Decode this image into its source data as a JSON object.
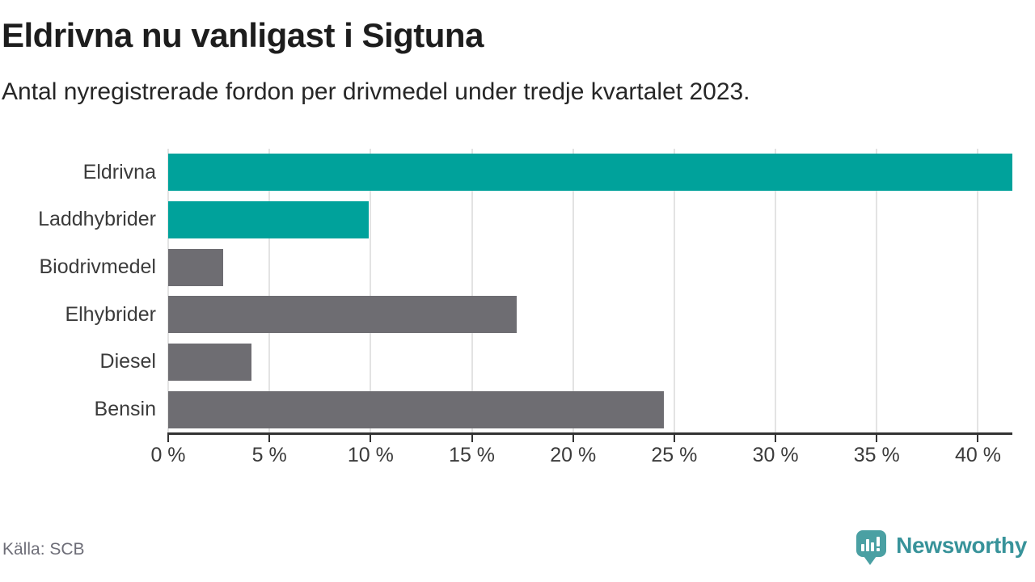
{
  "chart_data": {
    "type": "bar",
    "orientation": "horizontal",
    "title": "Eldrivna nu vanligast i Sigtuna",
    "subtitle": "Antal nyregistrerade fordon per drivmedel under tredje kvartalet 2023.",
    "categories": [
      "Eldrivna",
      "Laddhybrider",
      "Biodrivmedel",
      "Elhybrider",
      "Diesel",
      "Bensin"
    ],
    "values": [
      41.7,
      9.9,
      2.7,
      17.2,
      4.1,
      24.5
    ],
    "unit": "%",
    "bar_colors": [
      "#00a29b",
      "#00a29b",
      "#6e6d72",
      "#6e6d72",
      "#6e6d72",
      "#6e6d72"
    ],
    "accent_color": "#00a29b",
    "neutral_color": "#6e6d72",
    "x_tick_values": [
      0,
      5,
      10,
      15,
      20,
      25,
      30,
      35,
      40
    ],
    "x_tick_labels": [
      "0 %",
      "5 %",
      "10 %",
      "15 %",
      "20 %",
      "25 %",
      "30 %",
      "35 %",
      "40 %"
    ],
    "xlim": [
      0,
      41.7
    ],
    "grid": "vertical",
    "legend": "none"
  },
  "footer": {
    "source": "Källa: SCB",
    "brand_name": "Newsworthy"
  }
}
